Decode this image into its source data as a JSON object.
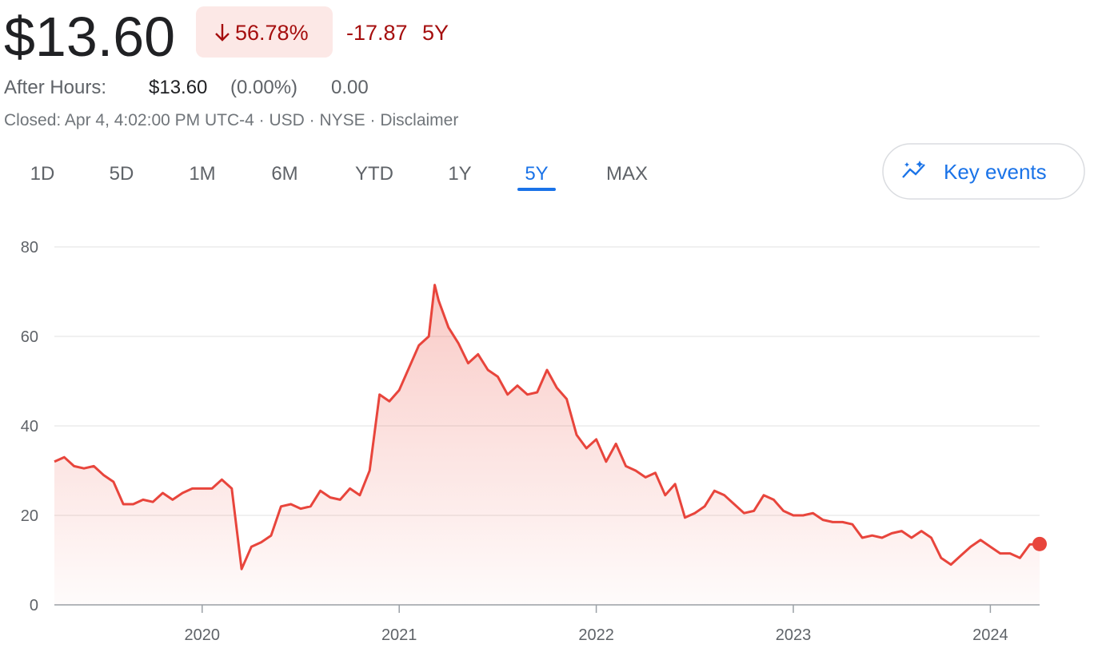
{
  "header": {
    "price": "$13.60",
    "change_percent": "56.78%",
    "change": "-17.87",
    "period": "5Y",
    "after_hours_label": "After Hours:",
    "after_hours_price": "$13.60",
    "after_hours_percent": "(0.00%)",
    "after_hours_change": "0.00",
    "status": "Closed: Apr 4, 4:02:00 PM UTC-4 · USD · NYSE · Disclaimer"
  },
  "tabs": [
    "1D",
    "5D",
    "1M",
    "6M",
    "YTD",
    "1Y",
    "5Y",
    "MAX"
  ],
  "active_tab_index": 6,
  "key_events_button": "Key events",
  "chart_data": {
    "type": "line",
    "color": "#e8453c",
    "x": [
      2019.25,
      2019.3,
      2019.35,
      2019.4,
      2019.45,
      2019.5,
      2019.55,
      2019.6,
      2019.65,
      2019.7,
      2019.75,
      2019.8,
      2019.85,
      2019.9,
      2019.95,
      2020,
      2020.05,
      2020.1,
      2020.15,
      2020.2,
      2020.25,
      2020.3,
      2020.35,
      2020.4,
      2020.45,
      2020.5,
      2020.55,
      2020.6,
      2020.65,
      2020.7,
      2020.75,
      2020.8,
      2020.85,
      2020.9,
      2020.95,
      2021,
      2021.05,
      2021.1,
      2021.15,
      2021.18,
      2021.2,
      2021.25,
      2021.3,
      2021.35,
      2021.4,
      2021.45,
      2021.5,
      2021.55,
      2021.6,
      2021.65,
      2021.7,
      2021.75,
      2021.8,
      2021.85,
      2021.9,
      2021.95,
      2022,
      2022.05,
      2022.1,
      2022.15,
      2022.2,
      2022.25,
      2022.3,
      2022.35,
      2022.4,
      2022.45,
      2022.5,
      2022.55,
      2022.6,
      2022.65,
      2022.7,
      2022.75,
      2022.8,
      2022.85,
      2022.9,
      2022.95,
      2023,
      2023.05,
      2023.1,
      2023.15,
      2023.2,
      2023.25,
      2023.3,
      2023.35,
      2023.4,
      2023.45,
      2023.5,
      2023.55,
      2023.6,
      2023.65,
      2023.7,
      2023.75,
      2023.8,
      2023.85,
      2023.9,
      2023.95,
      2024,
      2024.05,
      2024.1,
      2024.15,
      2024.2,
      2024.25
    ],
    "values": [
      32,
      33,
      31,
      30.5,
      31,
      29,
      27.5,
      22.5,
      22.5,
      23.5,
      23,
      25,
      23.5,
      25,
      26,
      26,
      26,
      28,
      26,
      8,
      13,
      14,
      15.5,
      22,
      22.5,
      21.5,
      22,
      25.5,
      24,
      23.5,
      26,
      24.5,
      30,
      47,
      45.5,
      48,
      53,
      58,
      60,
      71.5,
      68,
      62,
      58.5,
      54,
      56,
      52.5,
      51,
      47,
      49,
      47,
      47.5,
      52.5,
      48.5,
      46,
      38,
      35,
      37,
      32,
      36,
      31,
      30,
      28.5,
      29.5,
      24.5,
      27,
      19.5,
      20.5,
      22,
      25.5,
      24.5,
      22.5,
      20.5,
      21,
      24.5,
      23.5,
      21,
      20,
      20,
      20.5,
      19,
      18.5,
      18.5,
      18,
      15,
      15.5,
      15,
      16,
      16.5,
      15,
      16.5,
      15,
      10.5,
      9,
      11,
      13,
      14.5,
      13,
      11.5,
      11.5,
      10.5,
      13.5,
      13.6
    ],
    "xlim": [
      2019.25,
      2024.25
    ],
    "xticks": [
      2020,
      2021,
      2022,
      2023,
      2024
    ],
    "ylim": [
      0,
      80
    ],
    "yticks": [
      0,
      20,
      40,
      60,
      80
    ],
    "grid": true
  }
}
